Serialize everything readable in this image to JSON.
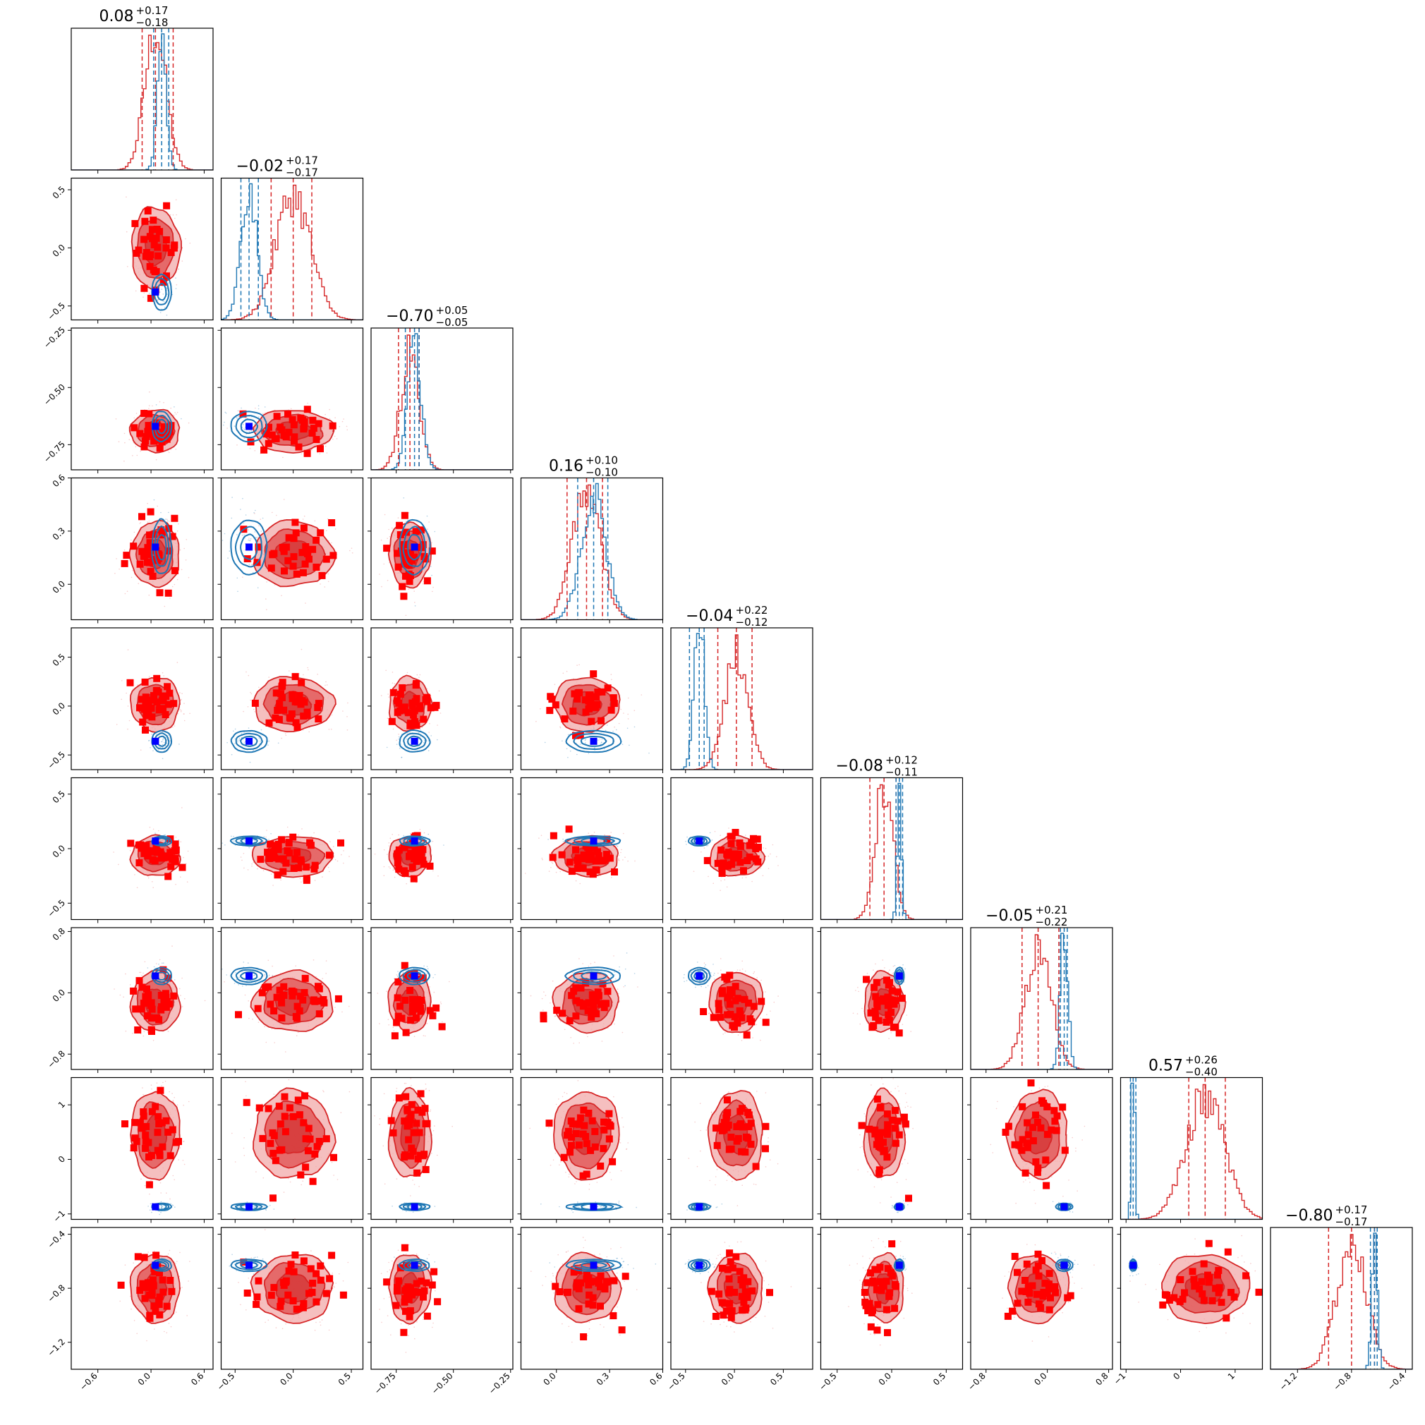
{
  "colors": {
    "posterior_a": "#d62728",
    "posterior_a_fill_outer": "#f2a9a9",
    "posterior_a_fill_inner": "#e25a5a",
    "posterior_a_fill_core": "#d63838",
    "posterior_b": "#1f77b4",
    "injected_marker": "#0000ff",
    "extra_marker": "#ff0000"
  },
  "chart_data": {
    "type": "corner",
    "n_params": 9,
    "grid": false,
    "titles": [
      {
        "median": "0.08",
        "plus": "+0.17",
        "minus": "−0.18"
      },
      {
        "median": "−0.02",
        "plus": "+0.17",
        "minus": "−0.17"
      },
      {
        "median": "−0.70",
        "plus": "+0.05",
        "minus": "−0.05"
      },
      {
        "median": "0.16",
        "plus": "+0.10",
        "minus": "−0.10"
      },
      {
        "median": "−0.04",
        "plus": "+0.22",
        "minus": "−0.12"
      },
      {
        "median": "−0.08",
        "plus": "+0.12",
        "minus": "−0.11"
      },
      {
        "median": "−0.05",
        "plus": "+0.21",
        "minus": "−0.22"
      },
      {
        "median": "0.57",
        "plus": "+0.26",
        "minus": "−0.40"
      },
      {
        "median": "−0.80",
        "plus": "+0.17",
        "minus": "−0.17"
      }
    ],
    "params": [
      {
        "range": [
          -0.9,
          0.7
        ],
        "ticks": [
          -0.6,
          0.0,
          0.6
        ],
        "tick_labels": [
          "−0.6",
          "0.0",
          "0.6"
        ],
        "a": {
          "mean": 0.05,
          "sd": 0.12,
          "q": [
            -0.1,
            0.05,
            0.25
          ]
        },
        "b": {
          "mean": 0.12,
          "sd": 0.05,
          "q": [
            0.03,
            0.12,
            0.2
          ]
        },
        "truth": 0.05
      },
      {
        "range": [
          -0.62,
          0.6
        ],
        "ticks": [
          -0.5,
          0.0,
          0.5
        ],
        "tick_labels": [
          "−0.5",
          "0.0",
          "0.5"
        ],
        "a": {
          "mean": 0.0,
          "sd": 0.15,
          "q": [
            -0.19,
            0.0,
            0.16
          ]
        },
        "b": {
          "mean": -0.38,
          "sd": 0.07,
          "q": [
            -0.45,
            -0.38,
            -0.3
          ]
        },
        "truth": -0.38
      },
      {
        "range": [
          -0.86,
          -0.24
        ],
        "ticks": [
          -0.75,
          -0.5,
          -0.25
        ],
        "tick_labels": [
          "−0.75",
          "−0.50",
          "−0.25"
        ],
        "a": {
          "mean": -0.69,
          "sd": 0.04,
          "q": [
            -0.74,
            -0.69,
            -0.65
          ]
        },
        "b": {
          "mean": -0.67,
          "sd": 0.03,
          "q": [
            -0.71,
            -0.67,
            -0.65
          ]
        },
        "truth": -0.67
      },
      {
        "range": [
          -0.2,
          0.6
        ],
        "ticks": [
          0.0,
          0.3,
          0.6
        ],
        "tick_labels": [
          "0.0",
          "0.3",
          "0.6"
        ],
        "a": {
          "mean": 0.17,
          "sd": 0.08,
          "q": [
            0.06,
            0.17,
            0.26
          ]
        },
        "b": {
          "mean": 0.21,
          "sd": 0.07,
          "q": [
            0.12,
            0.21,
            0.29
          ]
        },
        "truth": 0.21
      },
      {
        "range": [
          -0.65,
          0.8
        ],
        "ticks": [
          -0.5,
          0.0,
          0.5
        ],
        "tick_labels": [
          "−0.5",
          "0.0",
          "0.5"
        ],
        "a": {
          "mean": 0.02,
          "sd": 0.12,
          "q": [
            -0.17,
            0.02,
            0.18
          ]
        },
        "b": {
          "mean": -0.36,
          "sd": 0.05,
          "q": [
            -0.46,
            -0.36,
            -0.31
          ]
        },
        "truth": -0.36
      },
      {
        "range": [
          -0.65,
          0.65
        ],
        "ticks": [
          -0.5,
          0.0,
          0.5
        ],
        "tick_labels": [
          "−0.5",
          "0.0",
          "0.5"
        ],
        "a": {
          "mean": -0.07,
          "sd": 0.08,
          "q": [
            -0.2,
            -0.07,
            0.04
          ]
        },
        "b": {
          "mean": 0.07,
          "sd": 0.02,
          "q": [
            0.04,
            0.07,
            0.1
          ]
        },
        "truth": 0.07
      },
      {
        "range": [
          -1.0,
          0.85
        ],
        "ticks": [
          -0.8,
          0.0,
          0.8
        ],
        "tick_labels": [
          "−0.8",
          "0.0",
          "0.8"
        ],
        "a": {
          "mean": -0.12,
          "sd": 0.17,
          "q": [
            -0.33,
            -0.12,
            0.15
          ]
        },
        "b": {
          "mean": 0.22,
          "sd": 0.05,
          "q": [
            0.17,
            0.22,
            0.26
          ]
        },
        "truth": 0.22
      },
      {
        "range": [
          -1.1,
          1.5
        ],
        "ticks": [
          -1,
          0,
          1
        ],
        "tick_labels": [
          "−1",
          "0",
          "1"
        ],
        "a": {
          "mean": 0.45,
          "sd": 0.35,
          "q": [
            0.15,
            0.45,
            0.82
          ]
        },
        "b": {
          "mean": -0.87,
          "sd": 0.03,
          "q": [
            -0.92,
            -0.87,
            -0.82
          ]
        },
        "truth": -0.87
      },
      {
        "range": [
          -1.4,
          -0.35
        ],
        "ticks": [
          -1.2,
          -0.8,
          -0.4
        ],
        "tick_labels": [
          "−1.2",
          "−0.8",
          "−0.4"
        ],
        "a": {
          "mean": -0.8,
          "sd": 0.11,
          "q": [
            -0.97,
            -0.8,
            -0.63
          ]
        },
        "b": {
          "mean": -0.63,
          "sd": 0.02,
          "q": [
            -0.66,
            -0.63,
            -0.61
          ]
        },
        "truth": -0.63
      }
    ]
  }
}
